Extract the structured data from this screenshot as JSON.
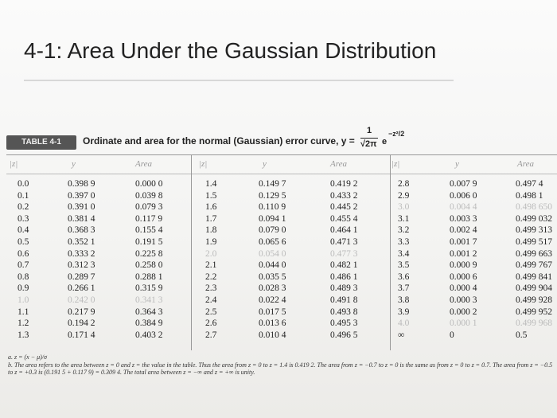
{
  "header": {
    "title": "4-1: Area Under the Gaussian Distribution"
  },
  "table": {
    "label": "TABLE 4-1",
    "caption": "Ordinate and area for the normal (Gaussian) error curve, y =",
    "formula": {
      "numerator": "1",
      "denominator": "√2π",
      "base": "e",
      "exponent": "−z²/2"
    },
    "headers": [
      "|z|",
      "y",
      "Area"
    ],
    "groups": [
      [
        [
          "0.0",
          "0.398 9",
          "0.000 0"
        ],
        [
          "0.1",
          "0.397 0",
          "0.039 8"
        ],
        [
          "0.2",
          "0.391 0",
          "0.079 3"
        ],
        [
          "0.3",
          "0.381 4",
          "0.117 9"
        ],
        [
          "0.4",
          "0.368 3",
          "0.155 4"
        ],
        [
          "0.5",
          "0.352 1",
          "0.191 5"
        ],
        [
          "0.6",
          "0.333 2",
          "0.225 8"
        ],
        [
          "0.7",
          "0.312 3",
          "0.258 0"
        ],
        [
          "0.8",
          "0.289 7",
          "0.288 1"
        ],
        [
          "0.9",
          "0.266 1",
          "0.315 9"
        ],
        [
          "1.0",
          "0.242 0",
          "0.341 3"
        ],
        [
          "1.1",
          "0.217 9",
          "0.364 3"
        ],
        [
          "1.2",
          "0.194 2",
          "0.384 9"
        ],
        [
          "1.3",
          "0.171 4",
          "0.403 2"
        ]
      ],
      [
        [
          "1.4",
          "0.149 7",
          "0.419 2"
        ],
        [
          "1.5",
          "0.129 5",
          "0.433 2"
        ],
        [
          "1.6",
          "0.110 9",
          "0.445 2"
        ],
        [
          "1.7",
          "0.094 1",
          "0.455 4"
        ],
        [
          "1.8",
          "0.079 0",
          "0.464 1"
        ],
        [
          "1.9",
          "0.065 6",
          "0.471 3"
        ],
        [
          "2.0",
          "0.054 0",
          "0.477 3"
        ],
        [
          "2.1",
          "0.044 0",
          "0.482 1"
        ],
        [
          "2.2",
          "0.035 5",
          "0.486 1"
        ],
        [
          "2.3",
          "0.028 3",
          "0.489 3"
        ],
        [
          "2.4",
          "0.022 4",
          "0.491 8"
        ],
        [
          "2.5",
          "0.017 5",
          "0.493 8"
        ],
        [
          "2.6",
          "0.013 6",
          "0.495 3"
        ],
        [
          "2.7",
          "0.010 4",
          "0.496 5"
        ]
      ],
      [
        [
          "2.8",
          "0.007 9",
          "0.497 4"
        ],
        [
          "2.9",
          "0.006 0",
          "0.498 1"
        ],
        [
          "3.0",
          "0.004 4",
          "0.498 650"
        ],
        [
          "3.1",
          "0.003 3",
          "0.499 032"
        ],
        [
          "3.2",
          "0.002 4",
          "0.499 313"
        ],
        [
          "3.3",
          "0.001 7",
          "0.499 517"
        ],
        [
          "3.4",
          "0.001 2",
          "0.499 663"
        ],
        [
          "3.5",
          "0.000 9",
          "0.499 767"
        ],
        [
          "3.6",
          "0.000 6",
          "0.499 841"
        ],
        [
          "3.7",
          "0.000 4",
          "0.499 904"
        ],
        [
          "3.8",
          "0.000 3",
          "0.499 928"
        ],
        [
          "3.9",
          "0.000 2",
          "0.499 952"
        ],
        [
          "4.0",
          "0.000 1",
          "0.499 968"
        ],
        [
          "∞",
          "0",
          "0.5"
        ]
      ]
    ]
  },
  "footnotes": [
    "a. z = (x − μ)/σ",
    "b. The area refers to the area between z = 0 and z = the value in the table. Thus the area from z = 0 to z = 1.4 is 0.419 2. The area from z = −0.7 to z = 0 is the same as from z = 0 to z = 0.7. The area from z = −0.5 to z = +0.3 is (0.191 5 + 0.117 9) = 0.309 4. The total area between z = −∞ and z = +∞ is unity."
  ]
}
